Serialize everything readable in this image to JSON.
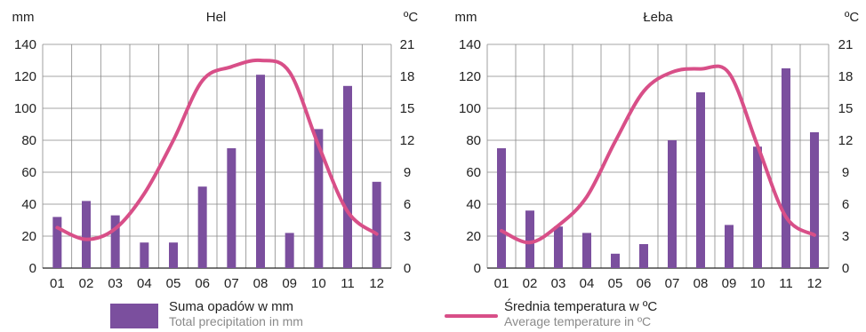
{
  "colors": {
    "bar": "#7b4f9e",
    "line": "#d84f88",
    "grid": "#888888",
    "axis": "#222222"
  },
  "chart_data": [
    {
      "type": "bar",
      "title": "Hel",
      "left_unit": "mm",
      "right_unit": "ºC",
      "categories": [
        "01",
        "02",
        "03",
        "04",
        "05",
        "06",
        "07",
        "08",
        "09",
        "10",
        "11",
        "12"
      ],
      "y_left_ticks": [
        "0",
        "20",
        "40",
        "60",
        "80",
        "100",
        "120",
        "140"
      ],
      "y_right_ticks": [
        "0",
        "3",
        "6",
        "9",
        "12",
        "15",
        "18",
        "21"
      ],
      "ylim_left": [
        0,
        140
      ],
      "ylim_right": [
        0,
        21
      ],
      "grid": true,
      "series": [
        {
          "name": "Suma opadów w mm",
          "type": "bar",
          "axis": "left",
          "values": [
            32,
            42,
            33,
            16,
            16,
            51,
            75,
            121,
            22,
            87,
            114,
            54
          ]
        },
        {
          "name": "Średnia temperatura w ºC",
          "type": "line",
          "axis": "right",
          "values": [
            3.8,
            2.7,
            3.7,
            7.0,
            12.0,
            17.6,
            18.9,
            19.5,
            18.4,
            11.5,
            5.3,
            3.2
          ]
        }
      ]
    },
    {
      "type": "bar",
      "title": "Łeba",
      "left_unit": "mm",
      "right_unit": "ºC",
      "categories": [
        "01",
        "02",
        "03",
        "04",
        "05",
        "06",
        "07",
        "08",
        "09",
        "10",
        "11",
        "12"
      ],
      "y_left_ticks": [
        "0",
        "20",
        "40",
        "60",
        "80",
        "100",
        "120",
        "140"
      ],
      "y_right_ticks": [
        "0",
        "3",
        "6",
        "9",
        "12",
        "15",
        "18",
        "21"
      ],
      "ylim_left": [
        0,
        140
      ],
      "ylim_right": [
        0,
        21
      ],
      "grid": true,
      "series": [
        {
          "name": "Suma opadów w mm",
          "type": "bar",
          "axis": "left",
          "values": [
            75,
            36,
            26,
            22,
            9,
            15,
            80,
            110,
            27,
            76,
            125,
            85
          ]
        },
        {
          "name": "Średnia temperatura w ºC",
          "type": "line",
          "axis": "right",
          "values": [
            3.5,
            2.4,
            4.0,
            6.7,
            11.9,
            16.6,
            18.4,
            18.7,
            18.3,
            11.5,
            4.8,
            3.1
          ]
        }
      ]
    }
  ],
  "legend": {
    "precip_pl": "Suma opadów w mm",
    "precip_en": "Total precipitation in mm",
    "temp_pl": "Średnia temperatura w ºC",
    "temp_en": "Average temperature in ºC"
  }
}
